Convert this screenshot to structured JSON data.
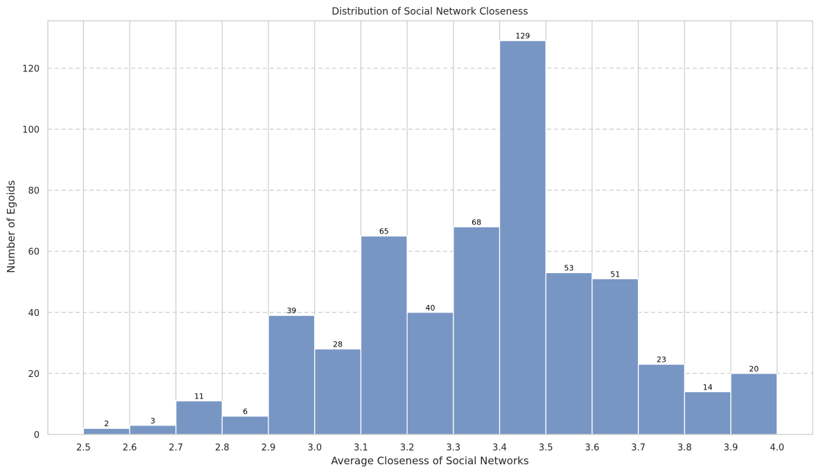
{
  "chart_data": {
    "type": "bar",
    "title": "Distribution of Social Network Closeness",
    "xlabel": "Average Closeness of Social Networks",
    "ylabel": "Number of Egoids",
    "bin_edges": [
      2.5,
      2.6,
      2.7,
      2.8,
      2.9,
      3.0,
      3.1,
      3.2,
      3.3,
      3.4,
      3.5,
      3.6,
      3.7,
      3.8,
      3.9,
      4.0
    ],
    "values": [
      2,
      3,
      11,
      6,
      39,
      28,
      65,
      40,
      68,
      129,
      53,
      51,
      23,
      14,
      20
    ],
    "xticks": [
      "2.5",
      "2.6",
      "2.7",
      "2.8",
      "2.9",
      "3.0",
      "3.1",
      "3.2",
      "3.3",
      "3.4",
      "3.5",
      "3.6",
      "3.7",
      "3.8",
      "3.9",
      "4.0"
    ],
    "yticks": [
      "0",
      "20",
      "40",
      "60",
      "80",
      "100",
      "120"
    ],
    "xlim": [
      2.423,
      4.077
    ],
    "ylim": [
      0,
      135.5
    ],
    "grid": {
      "x": "solid",
      "y": "dashed"
    },
    "colors": {
      "bar": "#7896c4",
      "bar_edge": "#ffffff",
      "grid": "#cccccc",
      "spine": "#cccccc",
      "text": "#262626"
    }
  }
}
